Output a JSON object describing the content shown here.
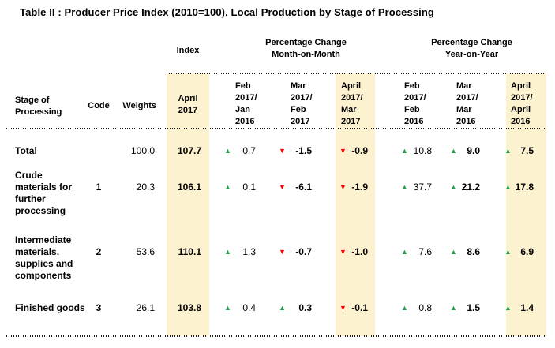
{
  "title": "Table II : Producer Price Index (2010=100), Local Production by Stage of Processing",
  "colors": {
    "highlight": "#FDF2D0",
    "up": "#21A14E",
    "down": "#FF0000"
  },
  "group_headers": {
    "index": "Index",
    "mom": "Percentage Change\nMonth-on-Month",
    "yoy": "Percentage Change\nYear-on-Year"
  },
  "column_headers": {
    "stage": "Stage of\nProcessing",
    "code": "Code",
    "weights": "Weights",
    "index_period": "April\n2017",
    "mom": [
      "Feb\n2017/\nJan\n2016",
      "Mar\n2017/\nFeb\n2017",
      "April\n2017/\nMar\n2017"
    ],
    "yoy": [
      "Feb\n2017/\nFeb\n2016",
      "Mar\n2017/\nMar\n2016",
      "April\n2017/\nApril\n2016"
    ]
  },
  "rows": [
    {
      "label": "Total",
      "code": "",
      "weights": "100.0",
      "index": "107.7",
      "mom": [
        {
          "dir": "up",
          "arrow": "▲",
          "value": "0.7"
        },
        {
          "dir": "down",
          "arrow": "▼",
          "value": "-1.5"
        },
        {
          "dir": "down",
          "arrow": "▼",
          "value": "-0.9"
        }
      ],
      "yoy": [
        {
          "dir": "up",
          "arrow": "▲",
          "value": "10.8"
        },
        {
          "dir": "up",
          "arrow": "▲",
          "value": "9.0"
        },
        {
          "dir": "up",
          "arrow": "▲",
          "value": "7.5"
        }
      ]
    },
    {
      "label": "Crude\nmaterials for\nfurther\nprocessing",
      "code": "1",
      "weights": "20.3",
      "index": "106.1",
      "mom": [
        {
          "dir": "up",
          "arrow": "▲",
          "value": "0.1"
        },
        {
          "dir": "down",
          "arrow": "▼",
          "value": "-6.1"
        },
        {
          "dir": "down",
          "arrow": "▼",
          "value": "-1.9"
        }
      ],
      "yoy": [
        {
          "dir": "up",
          "arrow": "▲",
          "value": "37.7"
        },
        {
          "dir": "up",
          "arrow": "▲",
          "value": "21.2"
        },
        {
          "dir": "up",
          "arrow": "▲",
          "value": "17.8"
        }
      ]
    },
    {
      "label": "Intermediate\nmaterials,\nsupplies and\ncomponents",
      "code": "2",
      "weights": "53.6",
      "index": "110.1",
      "mom": [
        {
          "dir": "up",
          "arrow": "▲",
          "value": "1.3"
        },
        {
          "dir": "down",
          "arrow": "▼",
          "value": "-0.7"
        },
        {
          "dir": "down",
          "arrow": "▼",
          "value": "-1.0"
        }
      ],
      "yoy": [
        {
          "dir": "up",
          "arrow": "▲",
          "value": "7.6"
        },
        {
          "dir": "up",
          "arrow": "▲",
          "value": "8.6"
        },
        {
          "dir": "up",
          "arrow": "▲",
          "value": "6.9"
        }
      ]
    },
    {
      "label": "Finished goods",
      "code": "3",
      "weights": "26.1",
      "index": "103.8",
      "mom": [
        {
          "dir": "up",
          "arrow": "▲",
          "value": "0.4"
        },
        {
          "dir": "up",
          "arrow": "▲",
          "value": "0.3"
        },
        {
          "dir": "down",
          "arrow": "▼",
          "value": "-0.1"
        }
      ],
      "yoy": [
        {
          "dir": "up",
          "arrow": "▲",
          "value": "0.8"
        },
        {
          "dir": "up",
          "arrow": "▲",
          "value": "1.5"
        },
        {
          "dir": "up",
          "arrow": "▲",
          "value": "1.4"
        }
      ]
    }
  ]
}
